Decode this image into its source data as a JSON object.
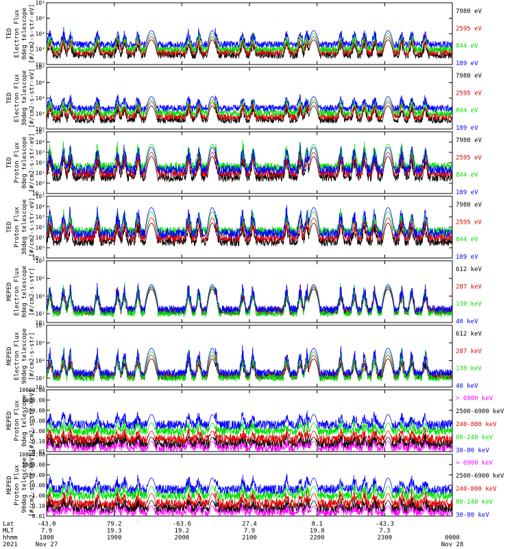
{
  "colors": {
    "black": "#000000",
    "red": "#e00000",
    "green": "#00e000",
    "blue": "#0000ff",
    "magenta": "#ff00ff"
  },
  "chart_data": {
    "type": "line",
    "title": "",
    "x_start_hour": 18,
    "x_end_hour": 24,
    "x_ticks": [
      {
        "hour": 18.0,
        "lat": "-43.0",
        "mlt": "7.9",
        "hhmm": "1800",
        "date": "Nov 27"
      },
      {
        "hour": 19.0,
        "lat": "79.2",
        "mlt": "19.3",
        "hhmm": "1900",
        "date": ""
      },
      {
        "hour": 20.0,
        "lat": "-63.6",
        "mlt": "19.2",
        "hhmm": "2000",
        "date": ""
      },
      {
        "hour": 21.0,
        "lat": "27.4",
        "mlt": "7.9",
        "hhmm": "2100",
        "date": ""
      },
      {
        "hour": 22.0,
        "lat": "8.1",
        "mlt": "19.8",
        "hhmm": "2200",
        "date": ""
      },
      {
        "hour": 23.0,
        "lat": "-43.3",
        "mlt": "7.3",
        "hhmm": "2300",
        "date": ""
      },
      {
        "hour": 24.0,
        "lat": "",
        "mlt": "",
        "hhmm": "0000",
        "date": "Nov 28"
      }
    ],
    "row_labels": {
      "lat": "Lat",
      "mlt": "MLT",
      "hhmm": "hhmm",
      "year": "2021"
    },
    "passes": [
      {
        "center": 19.55,
        "width": 0.08,
        "amp": 1.0
      },
      {
        "center": 20.45,
        "width": 0.065,
        "amp": 1.0
      },
      {
        "center": 21.95,
        "width": 0.075,
        "amp": 1.0
      },
      {
        "center": 23.05,
        "width": 0.075,
        "amp": 1.0
      }
    ],
    "panels": [
      {
        "ylabel": [
          "TED",
          "Electron Flux",
          "0deg telescope",
          "[#/cm2-s-str-eV]"
        ],
        "ylog": [
          0,
          8
        ],
        "tick_labels": [
          "10⁰",
          "10²",
          "10⁴",
          "10⁶",
          "10⁸"
        ],
        "tick_values": [
          0,
          2,
          4,
          6,
          8
        ],
        "series": [
          {
            "name": "7980 eV",
            "color": "black"
          },
          {
            "name": "2595 eV",
            "color": "red"
          },
          {
            "name": "844 eV",
            "color": "green"
          },
          {
            "name": "189 eV",
            "color": "blue"
          }
        ],
        "levels": {
          "base": [
            1.2,
            1.6,
            2.0,
            2.6
          ],
          "peak": [
            3.2,
            3.6,
            4.0,
            4.4
          ]
        }
      },
      {
        "ylabel": [
          "TED",
          "Electron Flux",
          "30deg telescope",
          "[#/cm2-s-str-eV]"
        ],
        "ylog": [
          0,
          8
        ],
        "tick_labels": [
          "10⁰",
          "10²",
          "10⁴",
          "10⁶",
          "10⁸"
        ],
        "tick_values": [
          0,
          2,
          4,
          6,
          8
        ],
        "series": [
          {
            "name": "7980 eV",
            "color": "black"
          },
          {
            "name": "2595 eV",
            "color": "red"
          },
          {
            "name": "844 eV",
            "color": "green"
          },
          {
            "name": "189 eV",
            "color": "blue"
          }
        ],
        "levels": {
          "base": [
            1.2,
            1.6,
            2.1,
            2.7
          ],
          "peak": [
            3.0,
            3.5,
            3.8,
            4.2
          ]
        }
      },
      {
        "ylabel": [
          "TED",
          "Proton Flux",
          "0deg telescope",
          "[#/cm2-s-str-eV]"
        ],
        "ylog": [
          -1,
          5
        ],
        "tick_labels": [
          "10⁻¹",
          "10⁰",
          "10¹",
          "10²",
          "10³",
          "10⁴",
          "10⁵"
        ],
        "tick_values": [
          -1,
          0,
          1,
          2,
          3,
          4,
          5
        ],
        "series": [
          {
            "name": "7980 eV",
            "color": "black"
          },
          {
            "name": "2595 eV",
            "color": "red"
          },
          {
            "name": "844 eV",
            "color": "green"
          },
          {
            "name": "189 eV",
            "color": "blue"
          }
        ],
        "levels": {
          "base": [
            0.6,
            1.0,
            1.6,
            1.3
          ],
          "peak": [
            2.6,
            3.0,
            3.8,
            3.5
          ]
        }
      },
      {
        "ylabel": [
          "TED",
          "Proton Flux",
          "30deg telescope",
          "[#/cm2-s-str-eV]"
        ],
        "ylog": [
          -1,
          5
        ],
        "tick_labels": [
          "10⁻¹",
          "10⁰",
          "10¹",
          "10²",
          "10³",
          "10⁴",
          "10⁵"
        ],
        "tick_values": [
          -1,
          0,
          1,
          2,
          3,
          4,
          5
        ],
        "series": [
          {
            "name": "7980 eV",
            "color": "black"
          },
          {
            "name": "2595 eV",
            "color": "red"
          },
          {
            "name": "844 eV",
            "color": "green"
          },
          {
            "name": "189 eV",
            "color": "blue"
          }
        ],
        "levels": {
          "base": [
            0.6,
            1.0,
            1.6,
            1.4
          ],
          "peak": [
            2.4,
            2.9,
            3.5,
            3.9
          ]
        }
      },
      {
        "ylabel": [
          "MEPED",
          "Electron Flux",
          "0deg telescope",
          "[#/cm2-s-str]"
        ],
        "ylog": [
          1,
          8
        ],
        "tick_labels": [
          "10¹",
          "10²",
          "10⁴",
          "10⁶",
          "10⁸"
        ],
        "tick_values": [
          1,
          2,
          4,
          6,
          8
        ],
        "series": [
          {
            "name": "612 keV",
            "color": "black"
          },
          {
            "name": "287 keV",
            "color": "red"
          },
          {
            "name": "130 keV",
            "color": "green"
          },
          {
            "name": "40 keV",
            "color": "blue"
          }
        ],
        "levels": {
          "base": [
            2.3,
            2.3,
            2.1,
            2.5
          ],
          "peak": [
            4.8,
            5.0,
            5.1,
            5.3
          ]
        }
      },
      {
        "ylabel": [
          "MEPED",
          "Electron Flux",
          "90deg telescope",
          "[#/cm2-s-str]"
        ],
        "ylog": [
          1,
          8
        ],
        "tick_labels": [
          "10¹",
          "10²",
          "10⁴",
          "10⁶",
          "10⁸"
        ],
        "tick_values": [
          1,
          2,
          4,
          6,
          8
        ],
        "series": [
          {
            "name": "612 keV",
            "color": "black"
          },
          {
            "name": "287 keV",
            "color": "red"
          },
          {
            "name": "130 keV",
            "color": "green"
          },
          {
            "name": "40 keV",
            "color": "blue"
          }
        ],
        "levels": {
          "base": [
            2.3,
            2.3,
            2.1,
            2.6
          ],
          "peak": [
            4.2,
            4.6,
            5.0,
            5.4
          ]
        }
      },
      {
        "ylabel": [
          "MEPED",
          "Proton Flux",
          "0deg telescope",
          "[#/cm2-s-str-keV]"
        ],
        "ylog": [
          -2,
          4
        ],
        "tick_labels": [
          "0.01",
          "0.10",
          "1.00",
          "10.00",
          "100.00",
          "1000.00",
          "10000.00"
        ],
        "tick_values": [
          -2,
          -1,
          0,
          1,
          2,
          3,
          4
        ],
        "series": [
          {
            "name": "> 6900 keV",
            "color": "magenta"
          },
          {
            "name": "2500-6900 keV",
            "color": "black"
          },
          {
            "name": "240-800 keV",
            "color": "red"
          },
          {
            "name": "80-240 keV",
            "color": "green"
          },
          {
            "name": "30-80 keV",
            "color": "blue"
          }
        ],
        "levels": {
          "base": [
            -1.6,
            -1.2,
            -0.8,
            0.0,
            0.6
          ],
          "peak": [
            -1.0,
            -0.6,
            0.0,
            0.8,
            1.6
          ]
        }
      },
      {
        "ylabel": [
          "MEPED",
          "Proton Flux",
          "90deg telescope",
          "[#/cm2-s-str-keV]"
        ],
        "ylog": [
          -2,
          4
        ],
        "tick_labels": [
          "0.01",
          "0.10",
          "1.00",
          "10.00",
          "100.00",
          "1000.00",
          "10000.00"
        ],
        "tick_values": [
          -2,
          -1,
          0,
          1,
          2,
          3,
          4
        ],
        "series": [
          {
            "name": "> 6900 keV",
            "color": "magenta"
          },
          {
            "name": "2500-6900 keV",
            "color": "black"
          },
          {
            "name": "240-800 keV",
            "color": "red"
          },
          {
            "name": "80-240 keV",
            "color": "green"
          },
          {
            "name": "30-80 keV",
            "color": "blue"
          }
        ],
        "levels": {
          "base": [
            -1.6,
            -1.2,
            -0.8,
            0.0,
            0.6
          ],
          "peak": [
            -1.0,
            -0.5,
            0.2,
            0.9,
            1.7
          ]
        }
      }
    ]
  }
}
